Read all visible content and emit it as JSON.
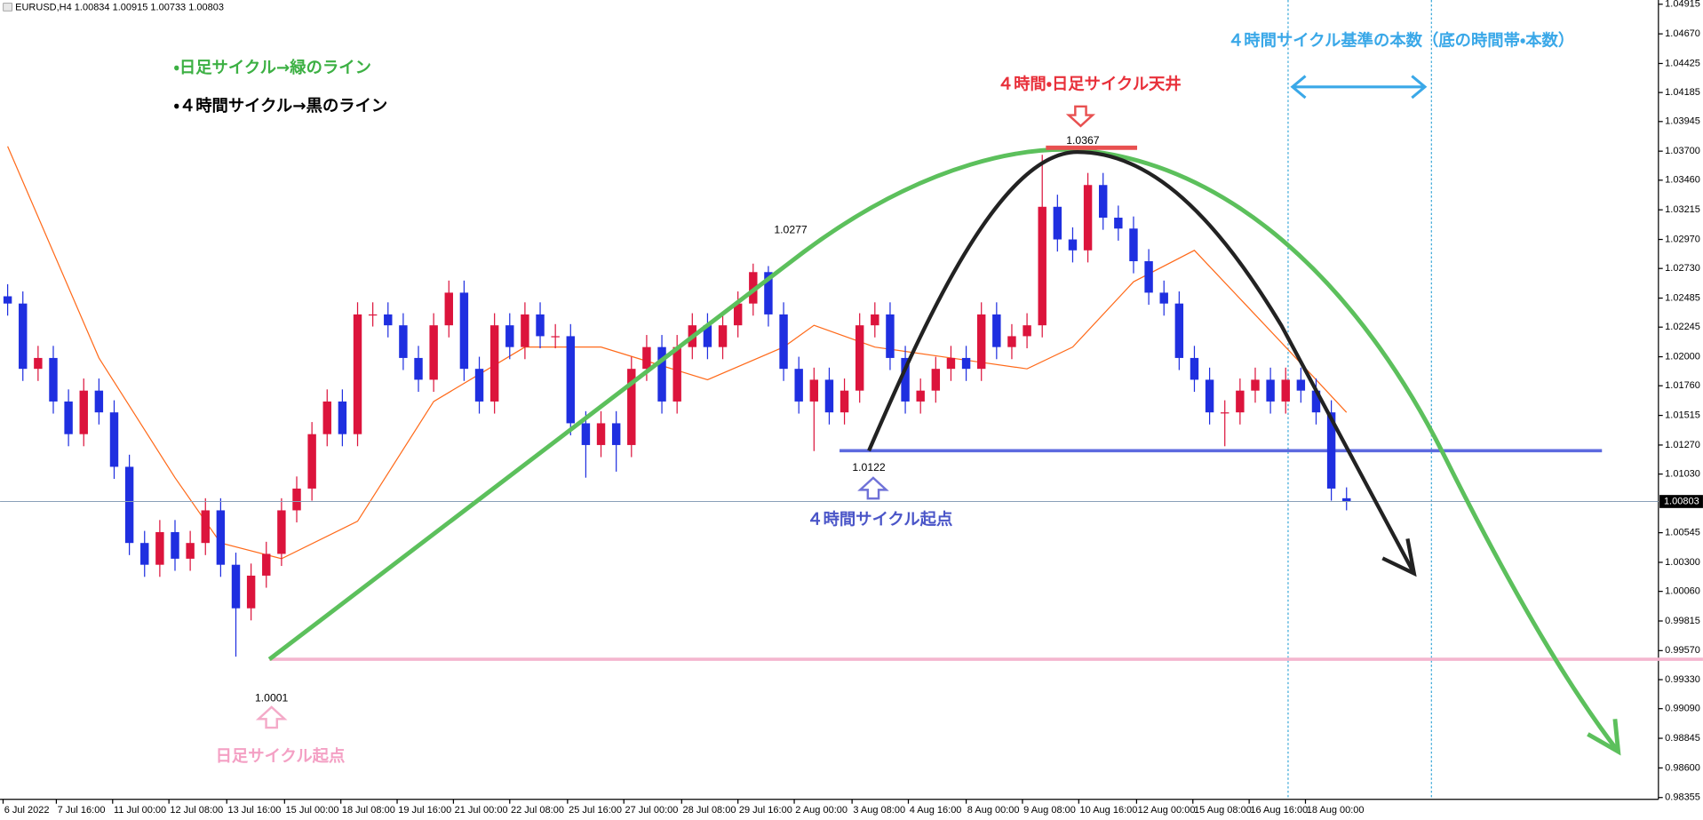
{
  "chart_data": {
    "type": "candlestick",
    "title": "EURUSD,H4  1.00834 1.00915 1.00733 1.00803",
    "up_color": "#dc143c",
    "down_color": "#1f2fe0",
    "open": [
      1.025,
      1.0244,
      1.019,
      1.0199,
      1.0163,
      1.0136,
      1.0172,
      1.0154,
      1.0109,
      1.0046,
      1.0028,
      1.0055,
      1.0033,
      1.0046,
      1.0073,
      1.0028,
      0.9992,
      1.0019,
      1.0037,
      1.0073,
      1.0091,
      1.0136,
      1.0163,
      1.0136,
      1.0235,
      1.0235,
      1.0226,
      1.0199,
      1.0181,
      1.0226,
      1.0253,
      1.019,
      1.0163,
      1.0226,
      1.0208,
      1.0235,
      1.0217,
      1.0217,
      1.0145,
      1.0127,
      1.0145,
      1.0127,
      1.019,
      1.0208,
      1.0163,
      1.0208,
      1.0226,
      1.0208,
      1.0226,
      1.0244,
      1.027,
      1.0235,
      1.019,
      1.0163,
      1.0181,
      1.0154,
      1.0172,
      1.0226,
      1.0235,
      1.0199,
      1.0163,
      1.0172,
      1.019,
      1.0199,
      1.019,
      1.0235,
      1.0208,
      1.0217,
      1.0226,
      1.0324,
      1.0297,
      1.0288,
      1.0342,
      1.0315,
      1.0306,
      1.0279,
      1.0253,
      1.0244,
      1.0199,
      1.0181,
      1.0154,
      1.0154,
      1.0172,
      1.0181,
      1.0163,
      1.0181,
      1.0172,
      1.0154,
      1.0083
    ],
    "high": [
      1.026,
      1.0254,
      1.0209,
      1.0209,
      1.0173,
      1.0182,
      1.0182,
      1.0164,
      1.0119,
      1.0056,
      1.0065,
      1.0065,
      1.0056,
      1.0083,
      1.0083,
      1.0038,
      1.0029,
      1.0047,
      1.0083,
      1.0101,
      1.0146,
      1.0173,
      1.0173,
      1.0245,
      1.0245,
      1.0245,
      1.0236,
      1.0209,
      1.0236,
      1.0263,
      1.0263,
      1.02,
      1.0236,
      1.0236,
      1.0245,
      1.0245,
      1.0227,
      1.0227,
      1.0155,
      1.0155,
      1.0155,
      1.02,
      1.0218,
      1.0218,
      1.0218,
      1.0236,
      1.0236,
      1.0236,
      1.0254,
      1.0277,
      1.0275,
      1.0245,
      1.02,
      1.0191,
      1.0191,
      1.0182,
      1.0236,
      1.0245,
      1.0245,
      1.0209,
      1.0182,
      1.02,
      1.0209,
      1.0209,
      1.0245,
      1.0245,
      1.0227,
      1.0236,
      1.0367,
      1.0334,
      1.0307,
      1.0352,
      1.0352,
      1.0325,
      1.0316,
      1.0289,
      1.0263,
      1.0254,
      1.0209,
      1.0191,
      1.0164,
      1.0182,
      1.0191,
      1.0191,
      1.0191,
      1.0191,
      1.0182,
      1.0164,
      1.0092
    ],
    "low": [
      1.0234,
      1.018,
      1.018,
      1.0153,
      1.0126,
      1.0126,
      1.0144,
      1.0099,
      1.0036,
      1.0018,
      1.0018,
      1.0023,
      1.0023,
      1.0036,
      1.0018,
      0.9952,
      0.9982,
      1.0009,
      1.0027,
      1.0063,
      1.0081,
      1.0126,
      1.0126,
      1.0126,
      1.0225,
      1.0216,
      1.0189,
      1.0171,
      1.0171,
      1.0216,
      1.018,
      1.0153,
      1.0153,
      1.0198,
      1.0198,
      1.0207,
      1.0207,
      1.0135,
      1.01,
      1.0117,
      1.0105,
      1.0117,
      1.018,
      1.0153,
      1.0153,
      1.0198,
      1.0198,
      1.0198,
      1.0216,
      1.0234,
      1.0225,
      1.018,
      1.0153,
      1.0122,
      1.0144,
      1.0144,
      1.0162,
      1.0216,
      1.0189,
      1.0153,
      1.0153,
      1.0162,
      1.018,
      1.018,
      1.018,
      1.0198,
      1.0198,
      1.0207,
      1.0216,
      1.0287,
      1.0278,
      1.0278,
      1.0305,
      1.0296,
      1.0269,
      1.0243,
      1.0234,
      1.0189,
      1.0171,
      1.0144,
      1.0126,
      1.0144,
      1.0162,
      1.0153,
      1.0153,
      1.0162,
      1.0144,
      1.0081,
      1.0073
    ],
    "close": [
      1.0244,
      1.019,
      1.0199,
      1.0163,
      1.0136,
      1.0172,
      1.0154,
      1.0109,
      1.0046,
      1.0028,
      1.0055,
      1.0033,
      1.0046,
      1.0073,
      1.0028,
      0.9992,
      1.0019,
      1.0037,
      1.0073,
      1.0091,
      1.0136,
      1.0163,
      1.0136,
      1.0235,
      1.0235,
      1.0226,
      1.0199,
      1.0181,
      1.0226,
      1.0253,
      1.019,
      1.0163,
      1.0226,
      1.0208,
      1.0235,
      1.0217,
      1.0217,
      1.0145,
      1.0127,
      1.0145,
      1.0127,
      1.019,
      1.0208,
      1.0163,
      1.0208,
      1.0226,
      1.0208,
      1.0226,
      1.0244,
      1.027,
      1.0235,
      1.019,
      1.0163,
      1.0181,
      1.0154,
      1.0172,
      1.0226,
      1.0235,
      1.0199,
      1.0163,
      1.0172,
      1.019,
      1.0199,
      1.019,
      1.0235,
      1.0208,
      1.0217,
      1.0226,
      1.0324,
      1.0297,
      1.0288,
      1.0342,
      1.0315,
      1.0306,
      1.0279,
      1.0253,
      1.0244,
      1.0199,
      1.0181,
      1.0154,
      1.0154,
      1.0172,
      1.0181,
      1.0163,
      1.0181,
      1.0172,
      1.0154,
      1.0091,
      1.008
    ],
    "ma": {
      "color": "#ff6a1a",
      "x": [
        0,
        6,
        11,
        14,
        18,
        23,
        28,
        34,
        39,
        46,
        51,
        53,
        57,
        62,
        67,
        70,
        74,
        78,
        84,
        88
      ],
      "values": [
        1.0374,
        1.0199,
        1.01,
        1.0046,
        1.0033,
        1.0064,
        1.0163,
        1.0208,
        1.0208,
        1.0181,
        1.0208,
        1.0226,
        1.0208,
        1.0199,
        1.019,
        1.0208,
        1.0262,
        1.0288,
        1.0208,
        1.0154
      ]
    },
    "last_price": 1.00803,
    "xlim": [
      -0.5,
      108.5
    ],
    "xticks": [
      {
        "value": -0.3,
        "label": "6 Jul 2022"
      },
      {
        "value": 3.2,
        "label": "7 Jul 16:00"
      },
      {
        "value": 6.9,
        "label": "11 Jul 00:00"
      },
      {
        "value": 10.6,
        "label": "12 Jul 08:00"
      },
      {
        "value": 14.4,
        "label": "13 Jul 16:00"
      },
      {
        "value": 18.2,
        "label": "15 Jul 00:00"
      },
      {
        "value": 21.9,
        "label": "18 Jul 08:00"
      },
      {
        "value": 25.6,
        "label": "19 Jul 16:00"
      },
      {
        "value": 29.3,
        "label": "21 Jul 00:00"
      },
      {
        "value": 33.0,
        "label": "22 Jul 08:00"
      },
      {
        "value": 36.8,
        "label": "25 Jul 16:00"
      },
      {
        "value": 40.5,
        "label": "27 Jul 00:00"
      },
      {
        "value": 44.3,
        "label": "28 Jul 08:00"
      },
      {
        "value": 48.0,
        "label": "29 Jul 16:00"
      },
      {
        "value": 51.7,
        "label": "2 Aug 00:00"
      },
      {
        "value": 55.5,
        "label": "3 Aug 08:00"
      },
      {
        "value": 59.2,
        "label": "4 Aug 16:00"
      },
      {
        "value": 63.0,
        "label": "8 Aug 00:00"
      },
      {
        "value": 66.7,
        "label": "9 Aug 08:00"
      },
      {
        "value": 70.4,
        "label": "10 Aug 16:00"
      },
      {
        "value": 74.2,
        "label": "12 Aug 00:00"
      },
      {
        "value": 77.9,
        "label": "15 Aug 08:00"
      },
      {
        "value": 81.6,
        "label": "16 Aug 16:00"
      },
      {
        "value": 85.3,
        "label": "18 Aug 00:00"
      }
    ],
    "ylim": [
      0.9834,
      1.0495
    ],
    "yticks": [
      1.04915,
      {
        "value": 1.0467,
        "label": "1.04670"
      },
      1.04425,
      1.04185,
      1.03945,
      {
        "value": 1.037,
        "label": "1.03700"
      },
      {
        "value": 1.0346,
        "label": "1.03460"
      },
      1.03215,
      {
        "value": 1.0297,
        "label": "1.02970"
      },
      {
        "value": 1.0273,
        "label": "1.02730"
      },
      1.02485,
      1.02245,
      {
        "value": 1.02,
        "label": "1.02000"
      },
      {
        "value": 1.0176,
        "label": "1.01760"
      },
      1.01515,
      {
        "value": 1.0127,
        "label": "1.01270"
      },
      {
        "value": 1.0103,
        "label": "1.01030"
      },
      1.00545,
      {
        "value": 1.003,
        "label": "1.00300"
      },
      {
        "value": 1.0006,
        "label": "1.00060"
      },
      0.99815,
      {
        "value": 0.9957,
        "label": "0.99570"
      },
      {
        "value": 0.9933,
        "label": "0.99330"
      },
      {
        "value": 0.9909,
        "label": "0.99090"
      },
      0.98845,
      {
        "value": 0.986,
        "label": "0.98600"
      },
      0.98355
    ],
    "grid": false,
    "annotations": {
      "daily_line_note": "・日足サイクル→緑のライン",
      "h4_line_note": "・４時間サイクル→黒のライン",
      "top_label": "４時間・日足サイクル天井",
      "bars_note": "４時間サイクル基準の本数（底の時間帯・本数）",
      "h4_start": "４時間サイクル起点",
      "daily_start": "日足サイクル起点",
      "price_top": "1.0367",
      "price_high": "1.0277",
      "price_h4_low": "1.0122",
      "price_daily_low": "1.0001"
    }
  }
}
